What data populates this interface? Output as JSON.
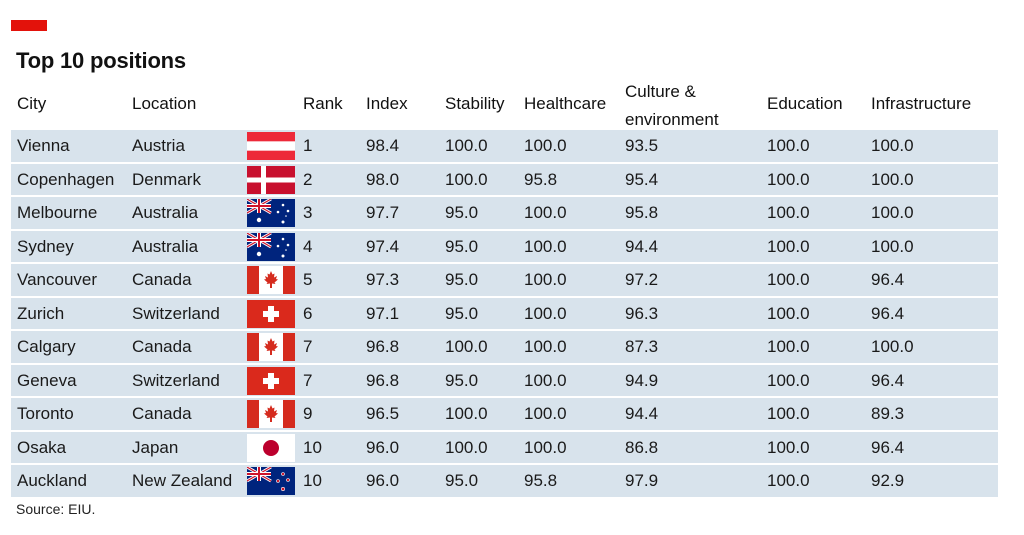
{
  "title": "Top 10 positions",
  "source": "Source: EIU.",
  "accent_color": "#e3120b",
  "row_color": "#d8e3ec",
  "chart_data": {
    "type": "table",
    "title": "Top 10 positions",
    "columns": [
      "City",
      "Location",
      "Rank",
      "Index",
      "Stability",
      "Healthcare",
      "Culture & environment",
      "Education",
      "Infrastructure"
    ],
    "headers": {
      "city": "City",
      "location": "Location",
      "rank": "Rank",
      "index": "Index",
      "stability": "Stability",
      "healthcare": "Healthcare",
      "culture_line1": "Culture &",
      "culture_line2": "environment",
      "education": "Education",
      "infrastructure": "Infrastructure"
    },
    "rows": [
      {
        "city": "Vienna",
        "location": "Austria",
        "flag": "austria-flag",
        "rank": "1",
        "index": "98.4",
        "stability": "100.0",
        "healthcare": "100.0",
        "culture": "93.5",
        "education": "100.0",
        "infrastructure": "100.0"
      },
      {
        "city": "Copenhagen",
        "location": "Denmark",
        "flag": "denmark-flag",
        "rank": "2",
        "index": "98.0",
        "stability": "100.0",
        "healthcare": "95.8",
        "culture": "95.4",
        "education": "100.0",
        "infrastructure": "100.0"
      },
      {
        "city": "Melbourne",
        "location": "Australia",
        "flag": "australia-flag",
        "rank": "3",
        "index": "97.7",
        "stability": "95.0",
        "healthcare": "100.0",
        "culture": "95.8",
        "education": "100.0",
        "infrastructure": "100.0"
      },
      {
        "city": "Sydney",
        "location": "Australia",
        "flag": "australia-flag",
        "rank": "4",
        "index": "97.4",
        "stability": "95.0",
        "healthcare": "100.0",
        "culture": "94.4",
        "education": "100.0",
        "infrastructure": "100.0"
      },
      {
        "city": "Vancouver",
        "location": "Canada",
        "flag": "canada-flag",
        "rank": "5",
        "index": "97.3",
        "stability": "95.0",
        "healthcare": "100.0",
        "culture": "97.2",
        "education": "100.0",
        "infrastructure": "96.4"
      },
      {
        "city": "Zurich",
        "location": "Switzerland",
        "flag": "switzerland-flag",
        "rank": "6",
        "index": "97.1",
        "stability": "95.0",
        "healthcare": "100.0",
        "culture": "96.3",
        "education": "100.0",
        "infrastructure": "96.4"
      },
      {
        "city": "Calgary",
        "location": "Canada",
        "flag": "canada-flag",
        "rank": "7",
        "index": "96.8",
        "stability": "100.0",
        "healthcare": "100.0",
        "culture": "87.3",
        "education": "100.0",
        "infrastructure": "100.0"
      },
      {
        "city": "Geneva",
        "location": "Switzerland",
        "flag": "switzerland-flag",
        "rank": "7",
        "index": "96.8",
        "stability": "95.0",
        "healthcare": "100.0",
        "culture": "94.9",
        "education": "100.0",
        "infrastructure": "96.4"
      },
      {
        "city": "Toronto",
        "location": "Canada",
        "flag": "canada-flag",
        "rank": "9",
        "index": "96.5",
        "stability": "100.0",
        "healthcare": "100.0",
        "culture": "94.4",
        "education": "100.0",
        "infrastructure": "89.3"
      },
      {
        "city": "Osaka",
        "location": "Japan",
        "flag": "japan-flag",
        "rank": "10",
        "index": "96.0",
        "stability": "100.0",
        "healthcare": "100.0",
        "culture": "86.8",
        "education": "100.0",
        "infrastructure": "96.4"
      },
      {
        "city": "Auckland",
        "location": "New Zealand",
        "flag": "new-zealand-flag",
        "rank": "10",
        "index": "96.0",
        "stability": "95.0",
        "healthcare": "95.8",
        "culture": "97.9",
        "education": "100.0",
        "infrastructure": "92.9"
      }
    ]
  }
}
